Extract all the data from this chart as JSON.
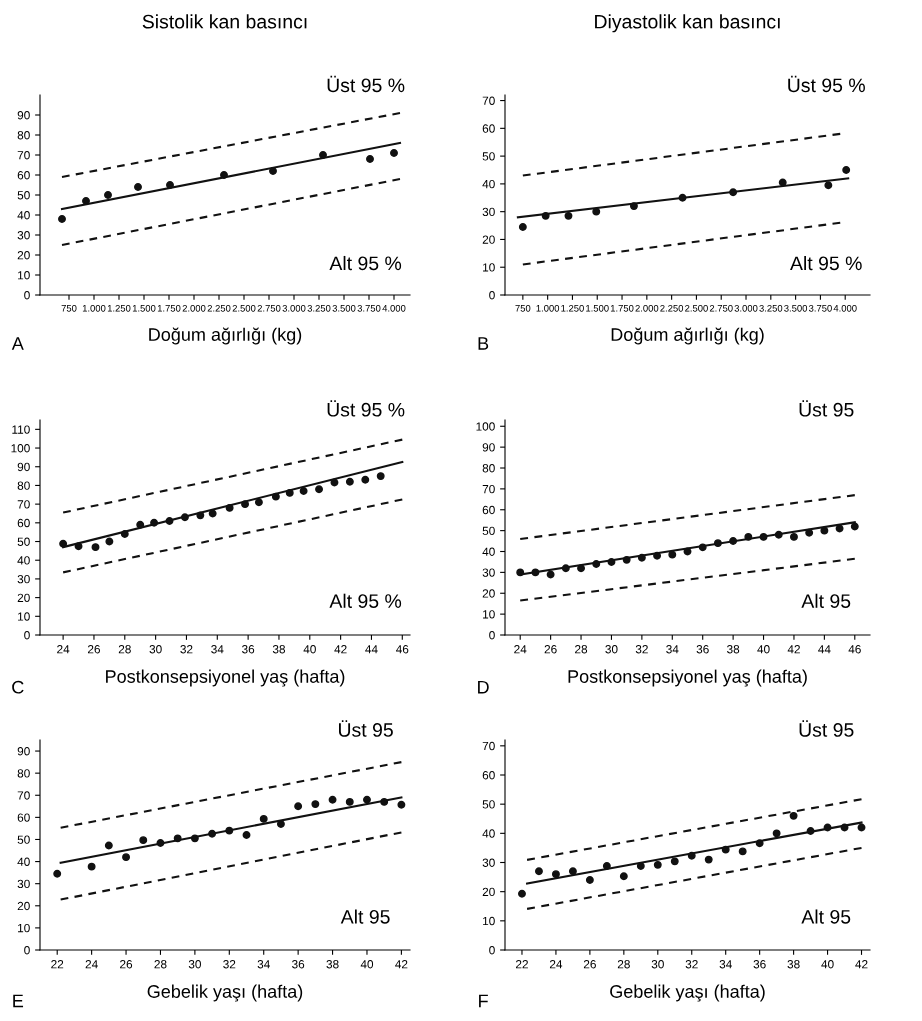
{
  "chart_data": [
    {
      "type": "scatter",
      "title": "Sistolik kan basıncı",
      "xlabel": "Doğum ağırlığı (kg)",
      "xlim": [
        460,
        4160
      ],
      "ylim": [
        0,
        100
      ],
      "yticks": [
        0,
        10,
        20,
        30,
        40,
        50,
        60,
        70,
        80,
        90
      ],
      "xticks": [
        750,
        {
          "value": 1000,
          "label": "1.000"
        },
        {
          "value": 1250,
          "label": "1.250"
        },
        {
          "value": 1500,
          "label": "1.500"
        },
        {
          "value": 1750,
          "label": "1.750"
        },
        {
          "value": 2000,
          "label": "2.000"
        },
        {
          "value": 2250,
          "label": "2.250"
        },
        {
          "value": 2500,
          "label": "2.500"
        },
        {
          "value": 2750,
          "label": "2.750"
        },
        {
          "value": 3000,
          "label": "3.000"
        },
        {
          "value": 3250,
          "label": "3.250"
        },
        {
          "value": 3500,
          "label": "3.500"
        },
        {
          "value": 3750,
          "label": "3.750"
        },
        {
          "value": 4000,
          "label": "4.000"
        }
      ],
      "annotations": [
        "A",
        "Üst 95 %",
        "Alt 95 %"
      ],
      "series": [
        {
          "type": "scatter",
          "marker": "circle",
          "color": "#111111",
          "x": [
            680,
            920,
            1140,
            1440,
            1760,
            2300,
            2790,
            3290,
            3760,
            4000
          ],
          "values": [
            38,
            47,
            50,
            54,
            55,
            60,
            62,
            70,
            68,
            71
          ]
        },
        {
          "type": "line",
          "line_style": "solid",
          "color": "#111111",
          "x": [
            680,
            4060
          ],
          "values": [
            43,
            76
          ]
        },
        {
          "type": "line",
          "line_style": "dashed",
          "color": "#111111",
          "x": [
            680,
            4060
          ],
          "values": [
            59,
            91
          ]
        },
        {
          "type": "line",
          "line_style": "dashed",
          "color": "#111111",
          "x": [
            680,
            4060
          ],
          "values": [
            25,
            58
          ]
        }
      ]
    },
    {
      "type": "scatter",
      "title": "Diyastolik kan basıncı",
      "xlabel": "Doğum ağırlığı (kg)",
      "xlim": [
        570,
        4250
      ],
      "ylim": [
        0,
        72
      ],
      "yticks": [
        0,
        10,
        20,
        30,
        40,
        50,
        60,
        70
      ],
      "xticks": [
        750,
        {
          "value": 1000,
          "label": "1.000"
        },
        {
          "value": 1250,
          "label": "1.250"
        },
        {
          "value": 1500,
          "label": "1.500"
        },
        {
          "value": 1750,
          "label": "1.750"
        },
        {
          "value": 2000,
          "label": "2.000"
        },
        {
          "value": 2250,
          "label": "2.250"
        },
        {
          "value": 2500,
          "label": "2.500"
        },
        {
          "value": 2750,
          "label": "2.750"
        },
        {
          "value": 3000,
          "label": "3.000"
        },
        {
          "value": 3250,
          "label": "3.250"
        },
        {
          "value": 3500,
          "label": "3.500"
        },
        {
          "value": 3750,
          "label": "3.750"
        },
        {
          "value": 4000,
          "label": "4.000"
        }
      ],
      "annotations": [
        "B",
        "Üst 95 %",
        "Alt 95 %"
      ],
      "series": [
        {
          "type": "scatter",
          "marker": "circle",
          "color": "#111111",
          "x": [
            750,
            980,
            1210,
            1490,
            1870,
            2360,
            2870,
            3370,
            3830,
            4010
          ],
          "values": [
            24.5,
            28.5,
            28.5,
            30,
            32,
            35,
            37,
            40.5,
            39.5,
            45
          ]
        },
        {
          "type": "line",
          "line_style": "solid",
          "color": "#111111",
          "x": [
            700,
            4030
          ],
          "values": [
            28,
            42
          ]
        },
        {
          "type": "line",
          "line_style": "dashed",
          "color": "#111111",
          "x": [
            750,
            3950
          ],
          "values": [
            43,
            58
          ]
        },
        {
          "type": "line",
          "line_style": "dashed",
          "color": "#111111",
          "x": [
            750,
            3950
          ],
          "values": [
            11,
            26
          ]
        }
      ]
    },
    {
      "type": "scatter",
      "xlabel": "Postkonsepsiyonel yaş (hafta)",
      "xlim": [
        22.5,
        46.5
      ],
      "ylim": [
        0,
        115
      ],
      "yticks": [
        0,
        10,
        20,
        30,
        40,
        50,
        60,
        70,
        80,
        90,
        100,
        110
      ],
      "xticks": [
        24,
        26,
        28,
        30,
        32,
        34,
        36,
        38,
        40,
        42,
        44,
        46
      ],
      "annotations": [
        "C",
        "Üst 95 %",
        "Alt 95 %"
      ],
      "series": [
        {
          "type": "scatter",
          "marker": "circle",
          "color": "#111111",
          "x": [
            24,
            25,
            26.1,
            27,
            28,
            29,
            29.9,
            30.9,
            31.9,
            32.9,
            33.7,
            34.8,
            35.8,
            36.7,
            37.8,
            38.7,
            39.6,
            40.6,
            41.6,
            42.6,
            43.6,
            44.6
          ],
          "values": [
            48.8,
            47.5,
            47,
            50,
            54,
            59,
            60,
            61,
            63,
            64,
            65,
            68,
            70,
            71,
            74,
            76,
            77,
            78,
            81.6,
            82,
            83,
            85
          ]
        },
        {
          "type": "line",
          "line_style": "solid",
          "color": "#111111",
          "x": [
            24,
            46
          ],
          "values": [
            47,
            92.5
          ]
        },
        {
          "type": "line",
          "line_style": "dashed",
          "color": "#111111",
          "x": [
            24,
            46
          ],
          "values": [
            65.5,
            104.5
          ]
        },
        {
          "type": "line",
          "line_style": "dashed",
          "color": "#111111",
          "x": [
            24,
            46
          ],
          "values": [
            33.5,
            72.5
          ]
        }
      ]
    },
    {
      "type": "scatter",
      "xlabel": "Postkonsepsiyonel yaş (hafta)",
      "xlim": [
        23,
        47
      ],
      "ylim": [
        0,
        103
      ],
      "yticks": [
        0,
        10,
        20,
        30,
        40,
        50,
        60,
        70,
        80,
        90,
        100
      ],
      "xticks": [
        24,
        26,
        28,
        30,
        32,
        34,
        36,
        38,
        40,
        42,
        44,
        46
      ],
      "annotations": [
        "D",
        "Üst 95",
        "Alt 95"
      ],
      "series": [
        {
          "type": "scatter",
          "marker": "circle",
          "color": "#111111",
          "x": [
            24,
            25,
            26,
            27,
            28,
            29,
            30,
            31,
            32,
            33,
            34,
            35,
            36,
            37,
            38,
            39,
            40,
            41,
            42,
            43,
            44,
            45,
            46
          ],
          "values": [
            30,
            30,
            29,
            32,
            32,
            34,
            35,
            36,
            37,
            38,
            38.5,
            40,
            42,
            44,
            45,
            47,
            47,
            48,
            47,
            49,
            50,
            51,
            52
          ]
        },
        {
          "type": "line",
          "line_style": "solid",
          "color": "#111111",
          "x": [
            24,
            46
          ],
          "values": [
            29,
            54
          ]
        },
        {
          "type": "line",
          "line_style": "dashed",
          "color": "#111111",
          "x": [
            24,
            46
          ],
          "values": [
            46,
            67
          ]
        },
        {
          "type": "line",
          "line_style": "dashed",
          "color": "#111111",
          "x": [
            24,
            46
          ],
          "values": [
            16.5,
            36.5
          ]
        }
      ]
    },
    {
      "type": "scatter",
      "xlabel": "Gebelik yaşı (hafta)",
      "xlim": [
        21,
        42.5
      ],
      "ylim": [
        0,
        95
      ],
      "yticks": [
        0,
        10,
        20,
        30,
        40,
        50,
        60,
        70,
        80,
        90
      ],
      "xticks": [
        22,
        24,
        26,
        28,
        30,
        32,
        34,
        36,
        38,
        40,
        42
      ],
      "annotations": [
        "E",
        "Üst 95",
        "Alt 95"
      ],
      "series": [
        {
          "type": "scatter",
          "marker": "circle",
          "color": "#111111",
          "x": [
            22,
            24,
            25,
            26,
            27,
            28,
            29,
            30,
            31,
            32,
            33,
            34,
            35,
            36,
            37,
            38,
            39,
            40,
            41,
            42
          ],
          "values": [
            34.5,
            37.7,
            47.3,
            42,
            49.7,
            48.4,
            50.5,
            50.5,
            52.6,
            54,
            52,
            59.3,
            57,
            65,
            66,
            68,
            67,
            68,
            67,
            65.7
          ]
        },
        {
          "type": "line",
          "line_style": "solid",
          "color": "#111111",
          "x": [
            22.2,
            42
          ],
          "values": [
            39.5,
            69
          ]
        },
        {
          "type": "line",
          "line_style": "dashed",
          "color": "#111111",
          "x": [
            22.2,
            42
          ],
          "values": [
            55.3,
            85
          ]
        },
        {
          "type": "line",
          "line_style": "dashed",
          "color": "#111111",
          "x": [
            22.2,
            42
          ],
          "values": [
            22.8,
            53.2
          ]
        }
      ]
    },
    {
      "type": "scatter",
      "xlabel": "Gebelik yaşı (hafta)",
      "xlim": [
        21,
        42.5
      ],
      "ylim": [
        0,
        72
      ],
      "yticks": [
        0,
        10,
        20,
        30,
        40,
        50,
        60,
        70
      ],
      "xticks": [
        22,
        24,
        26,
        28,
        30,
        32,
        34,
        36,
        38,
        40,
        42
      ],
      "annotations": [
        "F",
        "Üst 95",
        "Alt 95"
      ],
      "series": [
        {
          "type": "scatter",
          "marker": "circle",
          "color": "#111111",
          "x": [
            22,
            23,
            24,
            25,
            26,
            27,
            28,
            29,
            30,
            31,
            32,
            33,
            34,
            35,
            36,
            37,
            38,
            39,
            40,
            41,
            42
          ],
          "values": [
            19.3,
            27,
            26,
            27,
            24,
            28.8,
            25.3,
            28.8,
            29.2,
            30.4,
            32.3,
            31,
            34.4,
            33.8,
            36.6,
            40,
            46,
            40.8,
            42,
            42,
            42
          ]
        },
        {
          "type": "line",
          "line_style": "solid",
          "color": "#111111",
          "x": [
            22.3,
            42
          ],
          "values": [
            22.8,
            43.7
          ]
        },
        {
          "type": "line",
          "line_style": "dashed",
          "color": "#111111",
          "x": [
            22.3,
            42
          ],
          "values": [
            30.9,
            51.7
          ]
        },
        {
          "type": "line",
          "line_style": "dashed",
          "color": "#111111",
          "x": [
            22.3,
            42
          ],
          "values": [
            14.1,
            35
          ]
        }
      ]
    }
  ]
}
